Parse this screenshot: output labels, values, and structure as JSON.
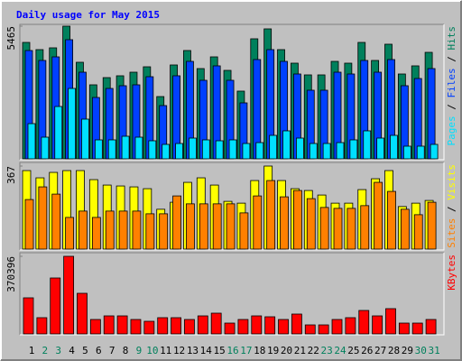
{
  "chart_data": [
    {
      "type": "bar",
      "title": "Daily usage for May 2015",
      "legend_separator": "/",
      "ylim": [
        0,
        5465
      ],
      "yticks": [
        5465
      ],
      "series": [
        {
          "name": "Hits",
          "color": "#00805c",
          "values": [
            4796,
            4499,
            4573,
            5465,
            3978,
            3049,
            3346,
            3421,
            3569,
            3792,
            2565,
            3867,
            4462,
            3718,
            4201,
            3644,
            2789,
            4945,
            5354,
            4499,
            3941,
            3458,
            3458,
            4015,
            3941,
            4796,
            4053,
            4722,
            3495,
            3830,
            4387
          ]
        },
        {
          "name": "Files",
          "color": "#0040ff",
          "values": [
            4462,
            4053,
            4201,
            4908,
            3569,
            2528,
            2900,
            3012,
            3049,
            3383,
            2194,
            3421,
            4015,
            3235,
            3830,
            3235,
            2305,
            4090,
            4499,
            4015,
            3495,
            2826,
            2826,
            3569,
            3495,
            4053,
            3569,
            4090,
            3012,
            3309,
            3718
          ]
        },
        {
          "name": "Pages",
          "color": "#00e0ff",
          "values": [
            1450,
            892,
            2156,
            2900,
            1636,
            781,
            781,
            930,
            892,
            744,
            595,
            632,
            855,
            781,
            744,
            781,
            632,
            669,
            967,
            1153,
            855,
            632,
            632,
            669,
            781,
            1153,
            855,
            967,
            521,
            521,
            595
          ]
        }
      ]
    },
    {
      "type": "bar",
      "legend_separator": "/",
      "ylim": [
        0,
        367
      ],
      "yticks": [
        367
      ],
      "series": [
        {
          "name": "Visits",
          "color": "#ffff00",
          "values": [
            347,
            315,
            339,
            347,
            347,
            307,
            283,
            279,
            275,
            267,
            176,
            207,
            295,
            315,
            283,
            211,
            203,
            303,
            367,
            303,
            267,
            259,
            239,
            203,
            203,
            263,
            311,
            347,
            188,
            203,
            215
          ]
        },
        {
          "name": "Sites",
          "color": "#ff8000",
          "values": [
            219,
            275,
            243,
            140,
            168,
            140,
            168,
            168,
            168,
            156,
            156,
            235,
            200,
            200,
            200,
            200,
            160,
            235,
            303,
            231,
            259,
            223,
            184,
            180,
            180,
            192,
            295,
            255,
            176,
            152,
            207
          ]
        }
      ]
    },
    {
      "type": "bar",
      "ylim": [
        0,
        370396
      ],
      "yticks": [
        370396
      ],
      "categories": [
        "1",
        "2",
        "3",
        "4",
        "5",
        "6",
        "7",
        "8",
        "9",
        "10",
        "11",
        "12",
        "13",
        "14",
        "15",
        "16",
        "17",
        "18",
        "19",
        "20",
        "21",
        "22",
        "23",
        "24",
        "25",
        "26",
        "27",
        "28",
        "29",
        "30",
        "31"
      ],
      "category_colors": [
        "#000000",
        "#00805c",
        "#00805c",
        "#000000",
        "#000000",
        "#000000",
        "#000000",
        "#000000",
        "#00805c",
        "#00805c",
        "#000000",
        "#000000",
        "#000000",
        "#000000",
        "#000000",
        "#00805c",
        "#00805c",
        "#000000",
        "#000000",
        "#000000",
        "#000000",
        "#000000",
        "#00805c",
        "#00805c",
        "#000000",
        "#000000",
        "#000000",
        "#000000",
        "#000000",
        "#00805c",
        "#00805c"
      ],
      "series": [
        {
          "name": "KBytes",
          "color": "#ff0000",
          "values": [
            172280,
            77526,
            267034,
            370396,
            193815,
            68912,
            86140,
            86140,
            68912,
            60298,
            77526,
            77526,
            68912,
            86140,
            99061,
            51684,
            68912,
            86140,
            81833,
            68912,
            94754,
            43070,
            43070,
            68912,
            77526,
            111982,
            86140,
            120596,
            51684,
            51684,
            68912
          ]
        }
      ]
    }
  ]
}
